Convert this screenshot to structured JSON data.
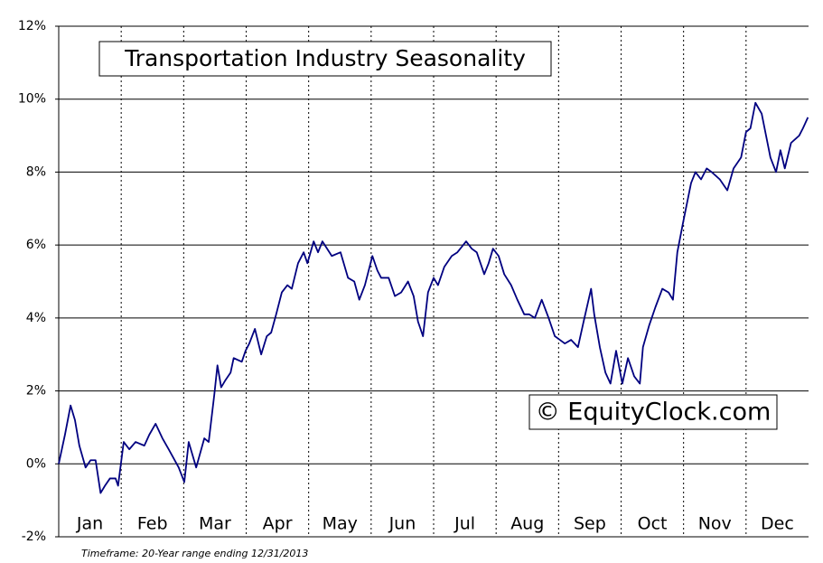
{
  "chart_data": {
    "type": "line",
    "title": "Transportation Industry Seasonality",
    "watermark": "© EquityClock.com",
    "footnote": "Timeframe: 20-Year range ending 12/31/2013",
    "categories": [
      "Jan",
      "Feb",
      "Mar",
      "Apr",
      "May",
      "Jun",
      "Jul",
      "Aug",
      "Sep",
      "Oct",
      "Nov",
      "Dec"
    ],
    "xlim": [
      0,
      12
    ],
    "ylim": [
      -2,
      12
    ],
    "yticks": [
      {
        "value": -2,
        "label": "-2%"
      },
      {
        "value": 0,
        "label": "0%"
      },
      {
        "value": 2,
        "label": "2%"
      },
      {
        "value": 4,
        "label": "4%"
      },
      {
        "value": 6,
        "label": "6%"
      },
      {
        "value": 8,
        "label": "8%"
      },
      {
        "value": 10,
        "label": "10%"
      },
      {
        "value": 12,
        "label": "12%"
      }
    ],
    "grid": true,
    "color": "#000080",
    "x": [
      0,
      0.1,
      0.19,
      0.26,
      0.33,
      0.43,
      0.51,
      0.59,
      0.67,
      0.74,
      0.82,
      0.91,
      0.95,
      1.04,
      1.13,
      1.23,
      1.37,
      1.45,
      1.55,
      1.66,
      1.76,
      1.92,
      2.01,
      2.08,
      2.2,
      2.33,
      2.4,
      2.49,
      2.54,
      2.6,
      2.67,
      2.75,
      2.8,
      2.93,
      2.99,
      3.05,
      3.14,
      3.24,
      3.33,
      3.4,
      3.48,
      3.57,
      3.66,
      3.73,
      3.83,
      3.92,
      3.98,
      4.08,
      4.15,
      4.22,
      4.37,
      4.51,
      4.63,
      4.73,
      4.81,
      4.9,
      5.02,
      5.1,
      5.16,
      5.28,
      5.38,
      5.48,
      5.59,
      5.68,
      5.75,
      5.83,
      5.91,
      6.0,
      6.07,
      6.17,
      6.29,
      6.38,
      6.52,
      6.61,
      6.69,
      6.81,
      6.88,
      6.95,
      7.04,
      7.13,
      7.24,
      7.34,
      7.45,
      7.53,
      7.62,
      7.73,
      7.84,
      7.94,
      8.02,
      8.1,
      8.2,
      8.31,
      8.4,
      8.52,
      8.57,
      8.66,
      8.75,
      8.83,
      8.92,
      9.02,
      9.11,
      9.21,
      9.3,
      9.35,
      9.45,
      9.55,
      9.66,
      9.76,
      9.83,
      9.9,
      9.99,
      10.12,
      10.19,
      10.28,
      10.37,
      10.45,
      10.58,
      10.7,
      10.8,
      10.92,
      11.0,
      11.07,
      11.15,
      11.25,
      11.32,
      11.39,
      11.48,
      11.55,
      11.62,
      11.72,
      11.85,
      11.91,
      11.99
    ],
    "values": [
      0,
      0.8,
      1.6,
      1.2,
      0.5,
      -0.1,
      0.1,
      0.1,
      -0.8,
      -0.6,
      -0.4,
      -0.4,
      -0.6,
      0.6,
      0.4,
      0.6,
      0.5,
      0.8,
      1.1,
      0.7,
      0.4,
      -0.1,
      -0.5,
      0.6,
      -0.1,
      0.7,
      0.6,
      1.9,
      2.7,
      2.1,
      2.3,
      2.5,
      2.9,
      2.8,
      3.1,
      3.3,
      3.7,
      3.0,
      3.5,
      3.6,
      4.1,
      4.7,
      4.9,
      4.8,
      5.5,
      5.8,
      5.5,
      6.1,
      5.8,
      6.1,
      5.7,
      5.8,
      5.1,
      5.0,
      4.5,
      4.9,
      5.7,
      5.3,
      5.1,
      5.1,
      4.6,
      4.7,
      5.0,
      4.6,
      3.9,
      3.5,
      4.7,
      5.1,
      4.9,
      5.4,
      5.7,
      5.8,
      6.1,
      5.9,
      5.8,
      5.2,
      5.5,
      5.9,
      5.7,
      5.2,
      4.9,
      4.5,
      4.1,
      4.1,
      4.0,
      4.5,
      4.0,
      3.5,
      3.4,
      3.3,
      3.4,
      3.2,
      3.9,
      4.8,
      4.1,
      3.2,
      2.5,
      2.2,
      3.1,
      2.2,
      2.9,
      2.4,
      2.2,
      3.2,
      3.8,
      4.3,
      4.8,
      4.7,
      4.5,
      5.8,
      6.6,
      7.7,
      8.0,
      7.8,
      8.1,
      8.0,
      7.8,
      7.5,
      8.1,
      8.4,
      9.1,
      9.2,
      9.9,
      9.6,
      9.0,
      8.4,
      8.0,
      8.6,
      8.1,
      8.8,
      9.0,
      9.2,
      9.5
    ]
  }
}
